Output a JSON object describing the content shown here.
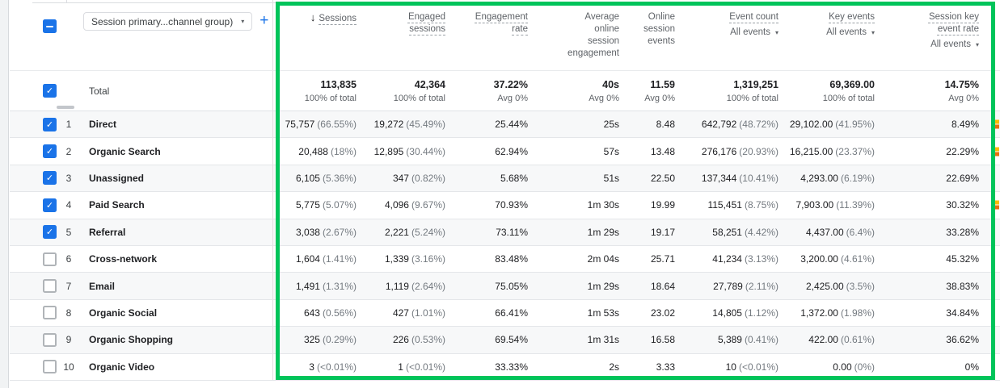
{
  "icons": {
    "caret": "▾",
    "plus": "+",
    "sort_desc": "↓",
    "check": "✓"
  },
  "toolbar": {
    "dimension_chip": "Session primary...channel group)"
  },
  "columns": {
    "sessions": {
      "label": "Sessions"
    },
    "engaged": {
      "label": "Engaged sessions"
    },
    "engagement_rate": {
      "label": "Engagement rate"
    },
    "avg_engagement": {
      "label": "Average online session engagement"
    },
    "online_events": {
      "label": "Online session events"
    },
    "event_count": {
      "label": "Event count",
      "filter": "All events"
    },
    "key_events": {
      "label": "Key events",
      "filter": "All events"
    },
    "session_key_event_rate": {
      "label": "Session key event rate",
      "filter": "All events"
    }
  },
  "totals": {
    "label": "Total",
    "sessions": "113,835",
    "sessions_sub": "100% of total",
    "engaged": "42,364",
    "engaged_sub": "100% of total",
    "engagement_rate": "37.22%",
    "engagement_rate_sub": "Avg 0%",
    "avg_engagement": "40s",
    "avg_engagement_sub": "Avg 0%",
    "online_events": "11.59",
    "online_events_sub": "Avg 0%",
    "event_count": "1,319,251",
    "event_count_sub": "100% of total",
    "key_events": "69,369.00",
    "key_events_sub": "100% of total",
    "session_key_event_rate": "14.75%",
    "session_key_event_rate_sub": "Avg 0%"
  },
  "rows": [
    {
      "num": "1",
      "channel": "Direct",
      "checked": true,
      "alert": true,
      "sessions": "75,757",
      "sessions_pct": "(66.55%)",
      "engaged": "19,272",
      "engaged_pct": "(45.49%)",
      "engagement_rate": "25.44%",
      "avg_engagement": "25s",
      "online_events": "8.48",
      "event_count": "642,792",
      "event_count_pct": "(48.72%)",
      "key_events": "29,102.00",
      "key_events_pct": "(41.95%)",
      "session_key_event_rate": "8.49%"
    },
    {
      "num": "2",
      "channel": "Organic Search",
      "checked": true,
      "alert": true,
      "sessions": "20,488",
      "sessions_pct": "(18%)",
      "engaged": "12,895",
      "engaged_pct": "(30.44%)",
      "engagement_rate": "62.94%",
      "avg_engagement": "57s",
      "online_events": "13.48",
      "event_count": "276,176",
      "event_count_pct": "(20.93%)",
      "key_events": "16,215.00",
      "key_events_pct": "(23.37%)",
      "session_key_event_rate": "22.29%"
    },
    {
      "num": "3",
      "channel": "Unassigned",
      "checked": true,
      "alert": false,
      "sessions": "6,105",
      "sessions_pct": "(5.36%)",
      "engaged": "347",
      "engaged_pct": "(0.82%)",
      "engagement_rate": "5.68%",
      "avg_engagement": "51s",
      "online_events": "22.50",
      "event_count": "137,344",
      "event_count_pct": "(10.41%)",
      "key_events": "4,293.00",
      "key_events_pct": "(6.19%)",
      "session_key_event_rate": "22.69%"
    },
    {
      "num": "4",
      "channel": "Paid Search",
      "checked": true,
      "alert": true,
      "sessions": "5,775",
      "sessions_pct": "(5.07%)",
      "engaged": "4,096",
      "engaged_pct": "(9.67%)",
      "engagement_rate": "70.93%",
      "avg_engagement": "1m 30s",
      "online_events": "19.99",
      "event_count": "115,451",
      "event_count_pct": "(8.75%)",
      "key_events": "7,903.00",
      "key_events_pct": "(11.39%)",
      "session_key_event_rate": "30.32%"
    },
    {
      "num": "5",
      "channel": "Referral",
      "checked": true,
      "alert": false,
      "sessions": "3,038",
      "sessions_pct": "(2.67%)",
      "engaged": "2,221",
      "engaged_pct": "(5.24%)",
      "engagement_rate": "73.11%",
      "avg_engagement": "1m 29s",
      "online_events": "19.17",
      "event_count": "58,251",
      "event_count_pct": "(4.42%)",
      "key_events": "4,437.00",
      "key_events_pct": "(6.4%)",
      "session_key_event_rate": "33.28%"
    },
    {
      "num": "6",
      "channel": "Cross-network",
      "checked": false,
      "alert": false,
      "sessions": "1,604",
      "sessions_pct": "(1.41%)",
      "engaged": "1,339",
      "engaged_pct": "(3.16%)",
      "engagement_rate": "83.48%",
      "avg_engagement": "2m 04s",
      "online_events": "25.71",
      "event_count": "41,234",
      "event_count_pct": "(3.13%)",
      "key_events": "3,200.00",
      "key_events_pct": "(4.61%)",
      "session_key_event_rate": "45.32%"
    },
    {
      "num": "7",
      "channel": "Email",
      "checked": false,
      "alert": false,
      "sessions": "1,491",
      "sessions_pct": "(1.31%)",
      "engaged": "1,119",
      "engaged_pct": "(2.64%)",
      "engagement_rate": "75.05%",
      "avg_engagement": "1m 29s",
      "online_events": "18.64",
      "event_count": "27,789",
      "event_count_pct": "(2.11%)",
      "key_events": "2,425.00",
      "key_events_pct": "(3.5%)",
      "session_key_event_rate": "38.83%"
    },
    {
      "num": "8",
      "channel": "Organic Social",
      "checked": false,
      "alert": false,
      "sessions": "643",
      "sessions_pct": "(0.56%)",
      "engaged": "427",
      "engaged_pct": "(1.01%)",
      "engagement_rate": "66.41%",
      "avg_engagement": "1m 53s",
      "online_events": "23.02",
      "event_count": "14,805",
      "event_count_pct": "(1.12%)",
      "key_events": "1,372.00",
      "key_events_pct": "(1.98%)",
      "session_key_event_rate": "34.84%"
    },
    {
      "num": "9",
      "channel": "Organic Shopping",
      "checked": false,
      "alert": false,
      "sessions": "325",
      "sessions_pct": "(0.29%)",
      "engaged": "226",
      "engaged_pct": "(0.53%)",
      "engagement_rate": "69.54%",
      "avg_engagement": "1m 31s",
      "online_events": "16.58",
      "event_count": "5,389",
      "event_count_pct": "(0.41%)",
      "key_events": "422.00",
      "key_events_pct": "(0.61%)",
      "session_key_event_rate": "36.62%"
    },
    {
      "num": "10",
      "channel": "Organic Video",
      "checked": false,
      "alert": false,
      "sessions": "3",
      "sessions_pct": "(<0.01%)",
      "engaged": "1",
      "engaged_pct": "(<0.01%)",
      "engagement_rate": "33.33%",
      "avg_engagement": "2s",
      "online_events": "3.33",
      "event_count": "10",
      "event_count_pct": "(<0.01%)",
      "key_events": "0.00",
      "key_events_pct": "(0%)",
      "session_key_event_rate": "0%"
    }
  ]
}
